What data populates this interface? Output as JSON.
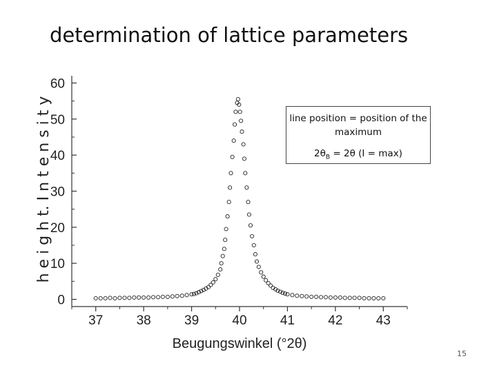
{
  "slide": {
    "title": "determination of lattice parameters",
    "page_number": "15"
  },
  "annotation": {
    "line1": "line position = position of the maximum",
    "formula_prefix": "2θ",
    "formula_subscript": "B",
    "formula_suffix": " = 2θ (I = max)"
  },
  "chart_data": {
    "type": "scatter",
    "title": "",
    "xlabel": "Beugungswinkel (°2θ)",
    "ylabel": "h e i g h t. I n t e n s i t y",
    "xlim": [
      36.5,
      43.5
    ],
    "ylim": [
      -2,
      62
    ],
    "x_ticks": [
      "37",
      "38",
      "39",
      "40",
      "41",
      "42",
      "43"
    ],
    "y_ticks": [
      "0",
      "10",
      "20",
      "30",
      "40",
      "50",
      "60"
    ],
    "grid": false,
    "legend": "none",
    "marker": "open-circle",
    "points": [
      [
        37.0,
        0.3
      ],
      [
        37.1,
        0.3
      ],
      [
        37.2,
        0.3
      ],
      [
        37.3,
        0.4
      ],
      [
        37.4,
        0.3
      ],
      [
        37.5,
        0.4
      ],
      [
        37.6,
        0.4
      ],
      [
        37.7,
        0.4
      ],
      [
        37.8,
        0.5
      ],
      [
        37.9,
        0.5
      ],
      [
        38.0,
        0.5
      ],
      [
        38.1,
        0.5
      ],
      [
        38.2,
        0.6
      ],
      [
        38.3,
        0.6
      ],
      [
        38.4,
        0.7
      ],
      [
        38.5,
        0.7
      ],
      [
        38.6,
        0.8
      ],
      [
        38.7,
        0.9
      ],
      [
        38.8,
        1.0
      ],
      [
        38.9,
        1.2
      ],
      [
        39.0,
        1.4
      ],
      [
        39.05,
        1.5
      ],
      [
        39.1,
        1.7
      ],
      [
        39.15,
        2.0
      ],
      [
        39.2,
        2.3
      ],
      [
        39.25,
        2.6
      ],
      [
        39.3,
        3.0
      ],
      [
        39.35,
        3.4
      ],
      [
        39.4,
        4.0
      ],
      [
        39.45,
        4.7
      ],
      [
        39.5,
        5.6
      ],
      [
        39.55,
        6.8
      ],
      [
        39.6,
        8.3
      ],
      [
        39.62,
        10.0
      ],
      [
        39.65,
        12.0
      ],
      [
        39.68,
        14.0
      ],
      [
        39.7,
        16.5
      ],
      [
        39.72,
        19.5
      ],
      [
        39.75,
        23.0
      ],
      [
        39.78,
        27.0
      ],
      [
        39.8,
        31.0
      ],
      [
        39.82,
        35.0
      ],
      [
        39.85,
        39.5
      ],
      [
        39.88,
        44.0
      ],
      [
        39.9,
        48.5
      ],
      [
        39.92,
        52.0
      ],
      [
        39.95,
        54.5
      ],
      [
        39.97,
        55.5
      ],
      [
        39.99,
        54.0
      ],
      [
        40.01,
        52.0
      ],
      [
        40.03,
        49.5
      ],
      [
        40.05,
        46.5
      ],
      [
        40.08,
        43.0
      ],
      [
        40.1,
        39.0
      ],
      [
        40.12,
        35.0
      ],
      [
        40.15,
        31.0
      ],
      [
        40.18,
        27.0
      ],
      [
        40.2,
        23.5
      ],
      [
        40.23,
        20.5
      ],
      [
        40.26,
        17.5
      ],
      [
        40.3,
        15.0
      ],
      [
        40.33,
        12.5
      ],
      [
        40.36,
        10.5
      ],
      [
        40.4,
        9.0
      ],
      [
        40.45,
        7.5
      ],
      [
        40.5,
        6.3
      ],
      [
        40.55,
        5.3
      ],
      [
        40.6,
        4.5
      ],
      [
        40.65,
        3.8
      ],
      [
        40.7,
        3.2
      ],
      [
        40.75,
        2.8
      ],
      [
        40.8,
        2.4
      ],
      [
        40.85,
        2.1
      ],
      [
        40.9,
        1.8
      ],
      [
        40.95,
        1.6
      ],
      [
        41.0,
        1.4
      ],
      [
        41.1,
        1.2
      ],
      [
        41.2,
        1.0
      ],
      [
        41.3,
        0.9
      ],
      [
        41.4,
        0.8
      ],
      [
        41.5,
        0.7
      ],
      [
        41.6,
        0.7
      ],
      [
        41.7,
        0.6
      ],
      [
        41.8,
        0.6
      ],
      [
        41.9,
        0.5
      ],
      [
        42.0,
        0.5
      ],
      [
        42.1,
        0.5
      ],
      [
        42.2,
        0.4
      ],
      [
        42.3,
        0.4
      ],
      [
        42.4,
        0.4
      ],
      [
        42.5,
        0.4
      ],
      [
        42.6,
        0.3
      ],
      [
        42.7,
        0.3
      ],
      [
        42.8,
        0.3
      ],
      [
        42.9,
        0.3
      ],
      [
        43.0,
        0.3
      ]
    ]
  }
}
